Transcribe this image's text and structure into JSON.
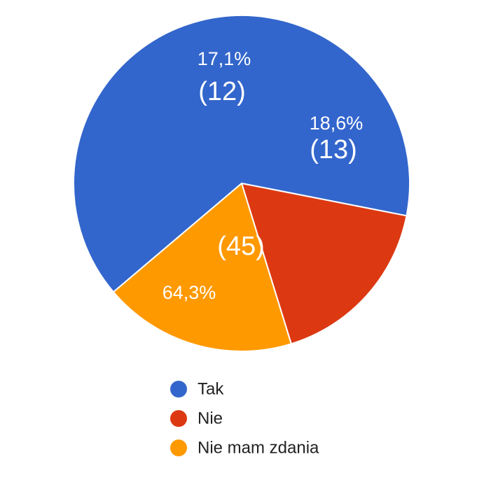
{
  "chart_data": {
    "type": "pie",
    "title": "",
    "legend_position": "bottom",
    "slices": [
      {
        "label": "Tak",
        "value": 45,
        "percent_label": "64,3%",
        "count_label": "(45)",
        "color": "#3366cc"
      },
      {
        "label": "Nie",
        "value": 12,
        "percent_label": "17,1%",
        "count_label": "(12)",
        "color": "#dc3912"
      },
      {
        "label": "Nie mam zdania",
        "value": 13,
        "percent_label": "18,6%",
        "count_label": "(13)",
        "color": "#ff9900"
      }
    ]
  }
}
